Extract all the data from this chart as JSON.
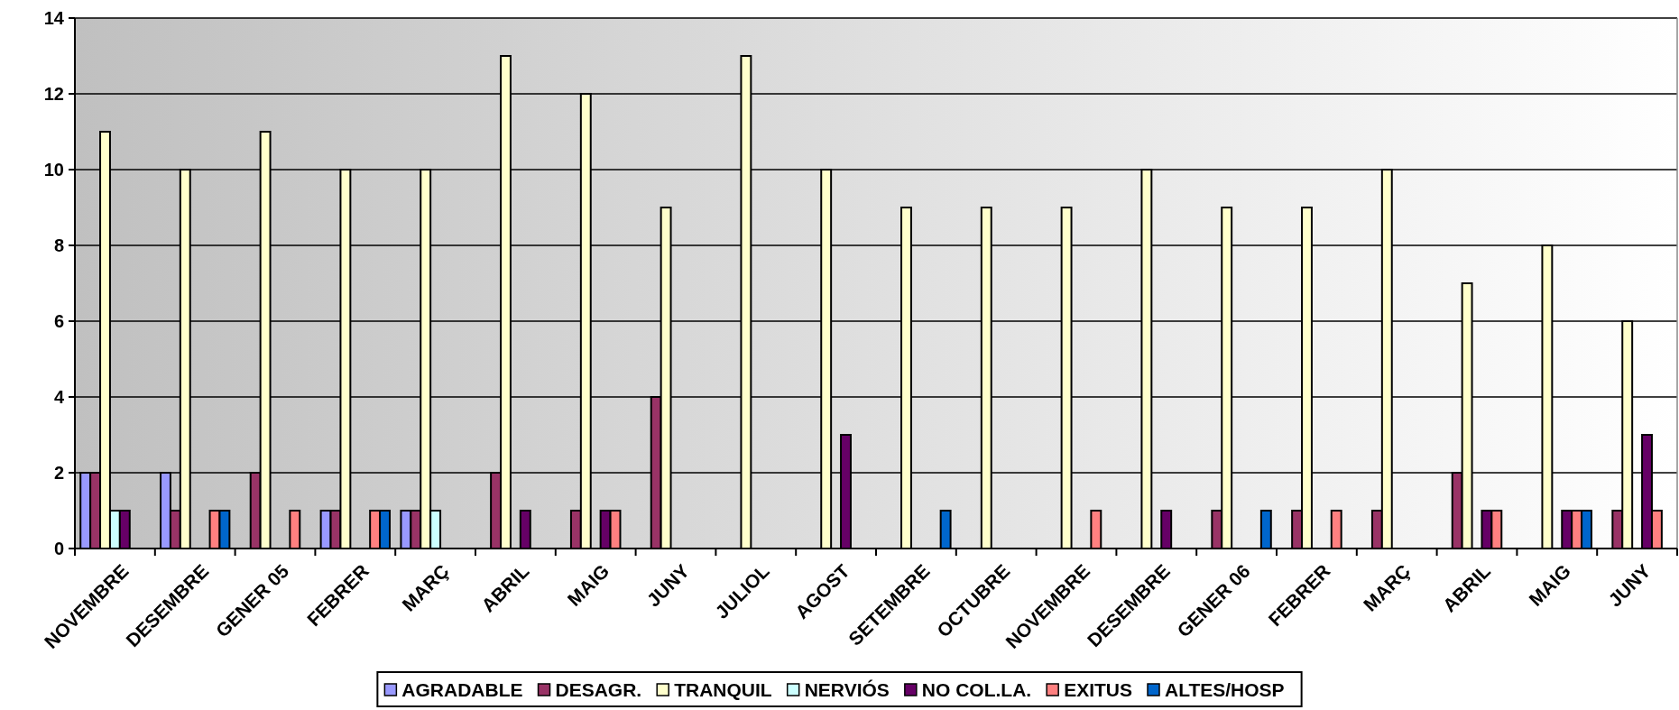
{
  "chart_data": {
    "type": "bar",
    "categories": [
      "NOVEMBRE",
      "DESEMBRE",
      "GENER 05",
      "FEBRER",
      "MARÇ",
      "ABRIL",
      "MAIG",
      "JUNY",
      "JULIOL",
      "AGOST",
      "SETEMBRE",
      "OCTUBRE",
      "NOVEMBRE",
      "DESEMBRE",
      "GENER 06",
      "FEBRER",
      "MARÇ",
      "ABRIL",
      "MAIG",
      "JUNY"
    ],
    "series": [
      {
        "name": "AGRADABLE",
        "color": "#9999ff",
        "values": [
          2,
          2,
          0,
          1,
          1,
          0,
          0,
          0,
          0,
          0,
          0,
          0,
          0,
          0,
          0,
          0,
          0,
          0,
          0,
          0
        ]
      },
      {
        "name": "DESAGR.",
        "color": "#993366",
        "values": [
          2,
          1,
          2,
          1,
          1,
          2,
          1,
          4,
          0,
          0,
          0,
          0,
          0,
          0,
          1,
          1,
          1,
          2,
          0,
          1
        ]
      },
      {
        "name": "TRANQUIL",
        "color": "#ffffcc",
        "values": [
          11,
          10,
          11,
          10,
          10,
          13,
          12,
          9,
          13,
          10,
          9,
          9,
          9,
          10,
          9,
          9,
          10,
          7,
          8,
          6
        ]
      },
      {
        "name": "NERVIÓS",
        "color": "#ccffff",
        "values": [
          1,
          0,
          0,
          0,
          1,
          0,
          0,
          0,
          0,
          0,
          0,
          0,
          0,
          0,
          0,
          0,
          0,
          0,
          0,
          0
        ]
      },
      {
        "name": "NO COL.LA.",
        "color": "#660066",
        "values": [
          1,
          0,
          0,
          0,
          0,
          1,
          1,
          0,
          0,
          3,
          0,
          0,
          0,
          1,
          0,
          0,
          0,
          1,
          1,
          3
        ]
      },
      {
        "name": "EXITUS",
        "color": "#ff8080",
        "values": [
          0,
          1,
          1,
          1,
          0,
          0,
          1,
          0,
          0,
          0,
          0,
          0,
          1,
          0,
          0,
          1,
          0,
          1,
          1,
          1
        ]
      },
      {
        "name": "ALTES/HOSP",
        "color": "#0066cc",
        "values": [
          0,
          1,
          0,
          1,
          0,
          0,
          0,
          0,
          0,
          0,
          1,
          0,
          0,
          0,
          1,
          0,
          0,
          0,
          1,
          0
        ]
      }
    ],
    "ylim": [
      0,
      14
    ],
    "yticks": [
      0,
      2,
      4,
      6,
      8,
      10,
      12,
      14
    ],
    "grid": "y",
    "legend": "bottom"
  }
}
